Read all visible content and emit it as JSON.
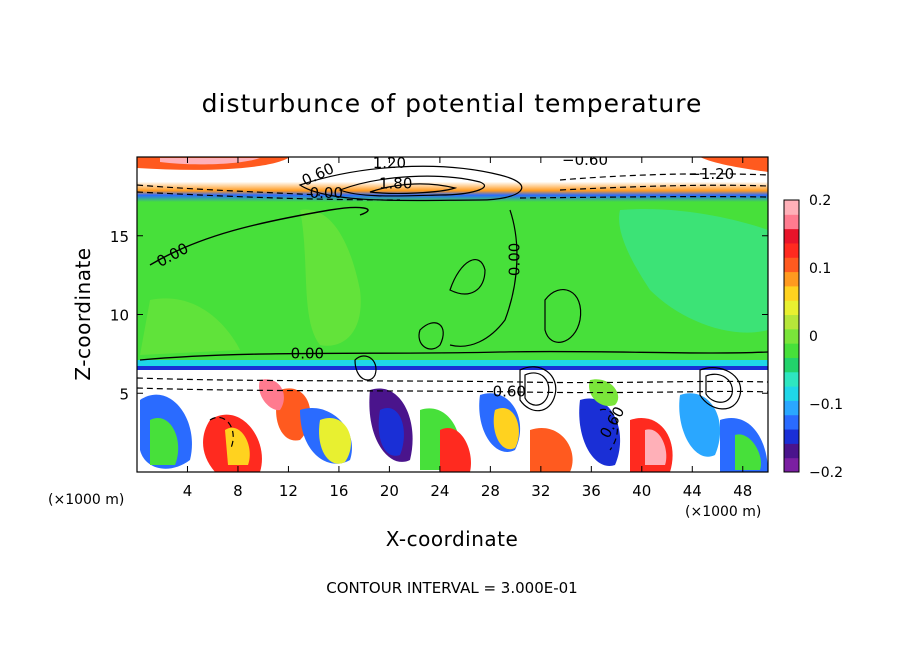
{
  "chart_data": {
    "type": "heatmap",
    "title": "disturbunce of potential temperature",
    "xlabel": "X-coordinate",
    "ylabel": "Z-coordinate",
    "x_unit": "(×1000 m)",
    "x_ticks": [
      "4",
      "8",
      "12",
      "16",
      "20",
      "24",
      "28",
      "32",
      "36",
      "40",
      "44",
      "48"
    ],
    "x_tick_values": [
      4,
      8,
      12,
      16,
      20,
      24,
      28,
      32,
      36,
      40,
      44,
      48
    ],
    "y_ticks": [
      "5",
      "10",
      "15"
    ],
    "y_tick_values": [
      5,
      10,
      15
    ],
    "xlim": [
      0,
      50
    ],
    "ylim": [
      0,
      20
    ],
    "colorbar": {
      "range": [
        -0.2,
        0.2
      ],
      "tick_labels": [
        "0.2",
        "0.1",
        "0",
        "−0.1",
        "−0.2"
      ],
      "tick_values": [
        0.2,
        0.1,
        0,
        -0.1,
        -0.2
      ],
      "colors": [
        "#7b1fa2",
        "#4a148c",
        "#1a2fd6",
        "#2a6bff",
        "#2aa7ff",
        "#1fd6e8",
        "#2ee6c0",
        "#22d36b",
        "#47e03a",
        "#7ae53a",
        "#b6e63a",
        "#e8f030",
        "#ffd21f",
        "#ff9a1f",
        "#ff5a1f",
        "#ff2a1f",
        "#e8142a",
        "#ff7b8f",
        "#ffb0b8"
      ]
    },
    "contour_labels": [
      {
        "text": "0.00",
        "x": 3.0,
        "z": 13.5,
        "angle": -28
      },
      {
        "text": "0.00",
        "x": 30.3,
        "z": 13.5,
        "angle": -90
      },
      {
        "text": "0.00",
        "x": 13.5,
        "z": 7.2,
        "angle": 0
      },
      {
        "text": "0.00",
        "x": 15.0,
        "z": 17.4,
        "angle": 0
      },
      {
        "text": "0.60",
        "x": 14.5,
        "z": 18.6,
        "angle": -25
      },
      {
        "text": "1.20",
        "x": 20.0,
        "z": 19.3,
        "angle": 0
      },
      {
        "text": "1.80",
        "x": 20.5,
        "z": 18.0,
        "angle": 0
      },
      {
        "text": "−0.60",
        "x": 35.5,
        "z": 19.5,
        "angle": 0
      },
      {
        "text": "−1.20",
        "x": 45.5,
        "z": 18.6,
        "angle": 0
      },
      {
        "text": "0.60",
        "x": 29.5,
        "z": 4.8,
        "angle": 0
      },
      {
        "text": "0.60",
        "x": 38.0,
        "z": 3.0,
        "angle": -60
      }
    ],
    "grid": false,
    "legend": "right"
  },
  "footer": "CONTOUR INTERVAL = 3.000E-01"
}
